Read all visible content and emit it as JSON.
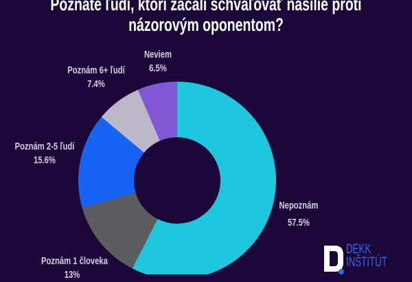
{
  "chart_data": {
    "type": "pie",
    "variant": "donut",
    "title": "Poznáte ľudí, ktorí začali schvaľovať násilie proti názorovým oponentom?",
    "title_lines": [
      "Poznáte ľudí, ktorí začali schvaľovať násilie proti",
      "názorovým oponentom?"
    ],
    "slices": [
      {
        "label": "Nepoznám",
        "value": 57.5,
        "value_label": "57.5%",
        "color": "#1ec6de"
      },
      {
        "label": "Poznám 1 človeka",
        "value": 13,
        "value_label": "13%",
        "color": "#5c5c60"
      },
      {
        "label": "Poznám 2-5 ľudí",
        "value": 15.6,
        "value_label": "15.6%",
        "color": "#1764f4"
      },
      {
        "label": "Poznám 6+ ľudí",
        "value": 7.4,
        "value_label": "7.4%",
        "color": "#bcb8c8"
      },
      {
        "label": "Neviem",
        "value": 6.5,
        "value_label": "6.5%",
        "color": "#8356d6"
      }
    ],
    "start": "top",
    "direction": "clockwise",
    "legend": "none"
  },
  "logo": {
    "line1": "DEKK",
    "line2": "INŠTITÚT"
  },
  "colors": {
    "background": "#1c0838",
    "label": "#d4cce4",
    "logo": "#2a6cf0"
  }
}
